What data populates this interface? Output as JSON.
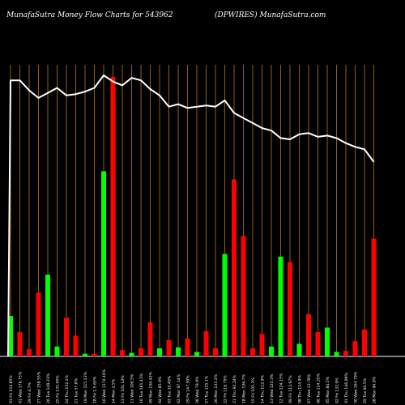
{
  "header": {
    "left": "MunafaSutra  Money Flow  Charts for 543962",
    "right": "(DPWIRES) MunafaSutra.com"
  },
  "colors": {
    "background": "#000000",
    "gridline": "#b8732a",
    "up": "#00ff00",
    "down": "#ff0000",
    "line": "#ffffff",
    "text": "#ffffff"
  },
  "chart_data": {
    "type": "bar",
    "title": "MunafaSutra  Money Flow  Charts for 543962",
    "subtitle": "(DPWIRES) MunafaSutra.com",
    "categories": [
      "03 Fri 152.85%",
      "01 Wed 176.75%",
      "29 Fri 4.7%",
      "27 Wed 158.55%",
      "26 Tue 149.23%",
      "25 Fri 135.05%",
      "24 Thu 152.1%",
      "21 Tue 57.8%",
      "19 Mon 115.13%",
      "18 Fri 1.5.65%",
      "16 Wed 1174.46%",
      "14 Mon 2.5%",
      "13 Fri 101.13%",
      "11 Wed 100.5%",
      "10 Tue 161.43%",
      "09 Mon 136.42%",
      "04 Wed 85.9%",
      "03 Tue 10.49%",
      "02 Mon 97.14%",
      "29 Fri 147.50%",
      "28 Wed 79.9%",
      "27 Tue 125.1%",
      "26 Mon 133.3%",
      "22 Fri 116.75%",
      "21 Thu 92.24%",
      "18 Mon 136.7%",
      "15 Fri 105.3%",
      "14 Thu 112.9%",
      "13 Wed 123.3%",
      "12 Tue 124.15%",
      "09 Fri 113.97%",
      "08 Thu 114.9%",
      "07 Wed 13.78%",
      "06 Tue 114.35%",
      "05 Mon 84.5%",
      "02 Fri 132.9%",
      "01 Thu 146.99%",
      "30 Wed 163.79%",
      "29 Tue 94.5%",
      "28 Mon 94.9%"
    ],
    "flow_values": [
      45,
      27,
      8,
      71,
      91,
      11,
      43,
      23,
      3,
      3,
      206,
      311,
      7,
      4,
      9,
      38,
      9,
      18,
      10,
      20,
      5,
      28,
      9,
      114,
      197,
      134,
      9,
      25,
      11,
      111,
      105,
      14,
      47,
      27,
      32,
      5,
      6,
      17,
      30,
      131
    ],
    "flow_direction": [
      "up",
      "down",
      "down",
      "down",
      "up",
      "up",
      "down",
      "down",
      "up",
      "down",
      "up",
      "down",
      "down",
      "up",
      "down",
      "down",
      "up",
      "down",
      "up",
      "down",
      "up",
      "down",
      "down",
      "up",
      "down",
      "down",
      "down",
      "down",
      "up",
      "up",
      "down",
      "up",
      "down",
      "down",
      "up",
      "up",
      "down",
      "down",
      "down",
      "down"
    ],
    "line_values": [
      100,
      100,
      96,
      93,
      95,
      97,
      94,
      94.5,
      95.5,
      97,
      102,
      99.5,
      98,
      101,
      100,
      96.5,
      94,
      89.5,
      90.5,
      89,
      89.5,
      90,
      89.5,
      92,
      87,
      85,
      83,
      81,
      80,
      77,
      76.5,
      78.5,
      79,
      77.5,
      78,
      77,
      75,
      73.5,
      72.5,
      67.5
    ],
    "bars_max": 320,
    "line_range": [
      -10,
      102
    ],
    "grid": true,
    "legend": "none"
  }
}
